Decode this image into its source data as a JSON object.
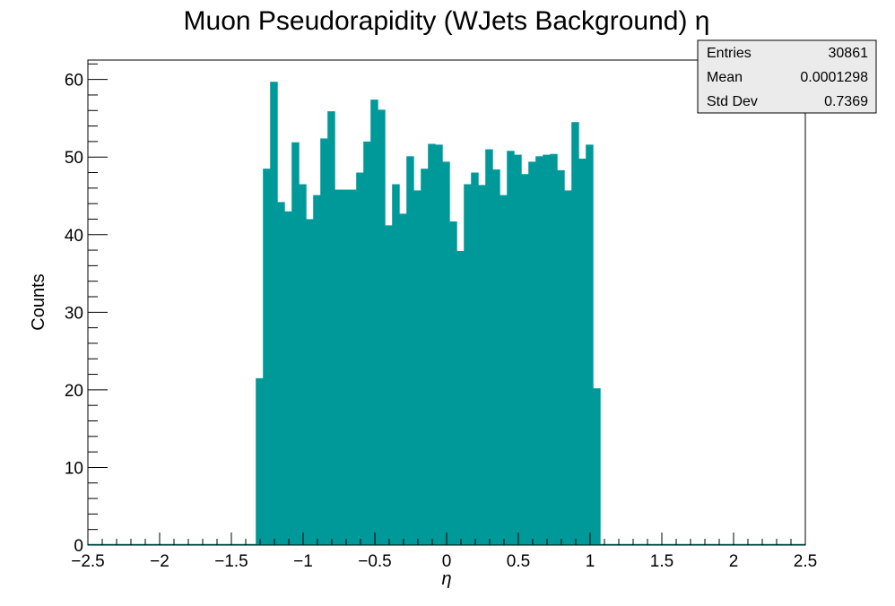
{
  "chart_data": {
    "type": "bar",
    "title": "Muon Pseudorapidity (WJets Background) η",
    "xlabel": "η",
    "ylabel": "Counts",
    "xlim": [
      -2.5,
      2.5
    ],
    "ylim": [
      0,
      62.5
    ],
    "bin_width": 0.05,
    "xticks": [
      -2.5,
      -2,
      -1.5,
      -1,
      -0.5,
      0,
      0.5,
      1,
      1.5,
      2,
      2.5
    ],
    "xtick_labels": [
      "−2.5",
      "−2",
      "−1.5",
      "−1",
      "−0.5",
      "0",
      "0.5",
      "1",
      "1.5",
      "2",
      "2.5"
    ],
    "yticks": [
      0,
      10,
      20,
      30,
      40,
      50,
      60
    ],
    "ytick_labels": [
      "0",
      "10",
      "20",
      "30",
      "40",
      "50",
      "60"
    ],
    "bar_color": "#009999",
    "bins": [
      {
        "x0": -1.33,
        "x1": -1.28,
        "value": 21.5
      },
      {
        "x0": -1.28,
        "x1": -1.23,
        "value": 48.5
      },
      {
        "x0": -1.23,
        "x1": -1.18,
        "value": 59.7
      },
      {
        "x0": -1.18,
        "x1": -1.13,
        "value": 44.2
      },
      {
        "x0": -1.13,
        "x1": -1.08,
        "value": 43.0
      },
      {
        "x0": -1.08,
        "x1": -1.03,
        "value": 51.9
      },
      {
        "x0": -1.03,
        "x1": -0.98,
        "value": 46.5
      },
      {
        "x0": -0.98,
        "x1": -0.93,
        "value": 42.0
      },
      {
        "x0": -0.93,
        "x1": -0.88,
        "value": 45.1
      },
      {
        "x0": -0.88,
        "x1": -0.83,
        "value": 52.4
      },
      {
        "x0": -0.83,
        "x1": -0.78,
        "value": 55.9
      },
      {
        "x0": -0.78,
        "x1": -0.73,
        "value": 45.8
      },
      {
        "x0": -0.73,
        "x1": -0.68,
        "value": 45.8
      },
      {
        "x0": -0.68,
        "x1": -0.63,
        "value": 45.8
      },
      {
        "x0": -0.63,
        "x1": -0.58,
        "value": 48.0
      },
      {
        "x0": -0.58,
        "x1": -0.53,
        "value": 52.0
      },
      {
        "x0": -0.53,
        "x1": -0.48,
        "value": 57.4
      },
      {
        "x0": -0.48,
        "x1": -0.43,
        "value": 56.1
      },
      {
        "x0": -0.43,
        "x1": -0.38,
        "value": 41.2
      },
      {
        "x0": -0.38,
        "x1": -0.33,
        "value": 46.5
      },
      {
        "x0": -0.33,
        "x1": -0.28,
        "value": 42.7
      },
      {
        "x0": -0.28,
        "x1": -0.23,
        "value": 50.1
      },
      {
        "x0": -0.23,
        "x1": -0.18,
        "value": 45.7
      },
      {
        "x0": -0.18,
        "x1": -0.13,
        "value": 48.5
      },
      {
        "x0": -0.13,
        "x1": -0.08,
        "value": 51.7
      },
      {
        "x0": -0.08,
        "x1": -0.03,
        "value": 51.6
      },
      {
        "x0": -0.03,
        "x1": 0.02,
        "value": 49.4
      },
      {
        "x0": 0.02,
        "x1": 0.07,
        "value": 41.7
      },
      {
        "x0": 0.07,
        "x1": 0.12,
        "value": 37.9
      },
      {
        "x0": 0.12,
        "x1": 0.17,
        "value": 46.5
      },
      {
        "x0": 0.17,
        "x1": 0.22,
        "value": 48.0
      },
      {
        "x0": 0.22,
        "x1": 0.27,
        "value": 46.4
      },
      {
        "x0": 0.27,
        "x1": 0.32,
        "value": 51.0
      },
      {
        "x0": 0.32,
        "x1": 0.37,
        "value": 48.4
      },
      {
        "x0": 0.37,
        "x1": 0.42,
        "value": 45.1
      },
      {
        "x0": 0.42,
        "x1": 0.47,
        "value": 50.8
      },
      {
        "x0": 0.47,
        "x1": 0.52,
        "value": 50.3
      },
      {
        "x0": 0.52,
        "x1": 0.57,
        "value": 47.8
      },
      {
        "x0": 0.57,
        "x1": 0.62,
        "value": 49.4
      },
      {
        "x0": 0.62,
        "x1": 0.67,
        "value": 50.1
      },
      {
        "x0": 0.67,
        "x1": 0.72,
        "value": 50.3
      },
      {
        "x0": 0.72,
        "x1": 0.77,
        "value": 50.4
      },
      {
        "x0": 0.77,
        "x1": 0.82,
        "value": 48.3
      },
      {
        "x0": 0.82,
        "x1": 0.87,
        "value": 45.7
      },
      {
        "x0": 0.87,
        "x1": 0.92,
        "value": 54.5
      },
      {
        "x0": 0.92,
        "x1": 0.97,
        "value": 49.8
      },
      {
        "x0": 0.97,
        "x1": 1.02,
        "value": 51.6
      },
      {
        "x0": 1.02,
        "x1": 1.07,
        "value": 20.2
      }
    ]
  },
  "stats_box": {
    "entries_label": "Entries",
    "entries_value": "30861",
    "mean_label": "Mean",
    "mean_value": "0.0001298",
    "stddev_label": "Std Dev",
    "stddev_value": "0.7369"
  }
}
